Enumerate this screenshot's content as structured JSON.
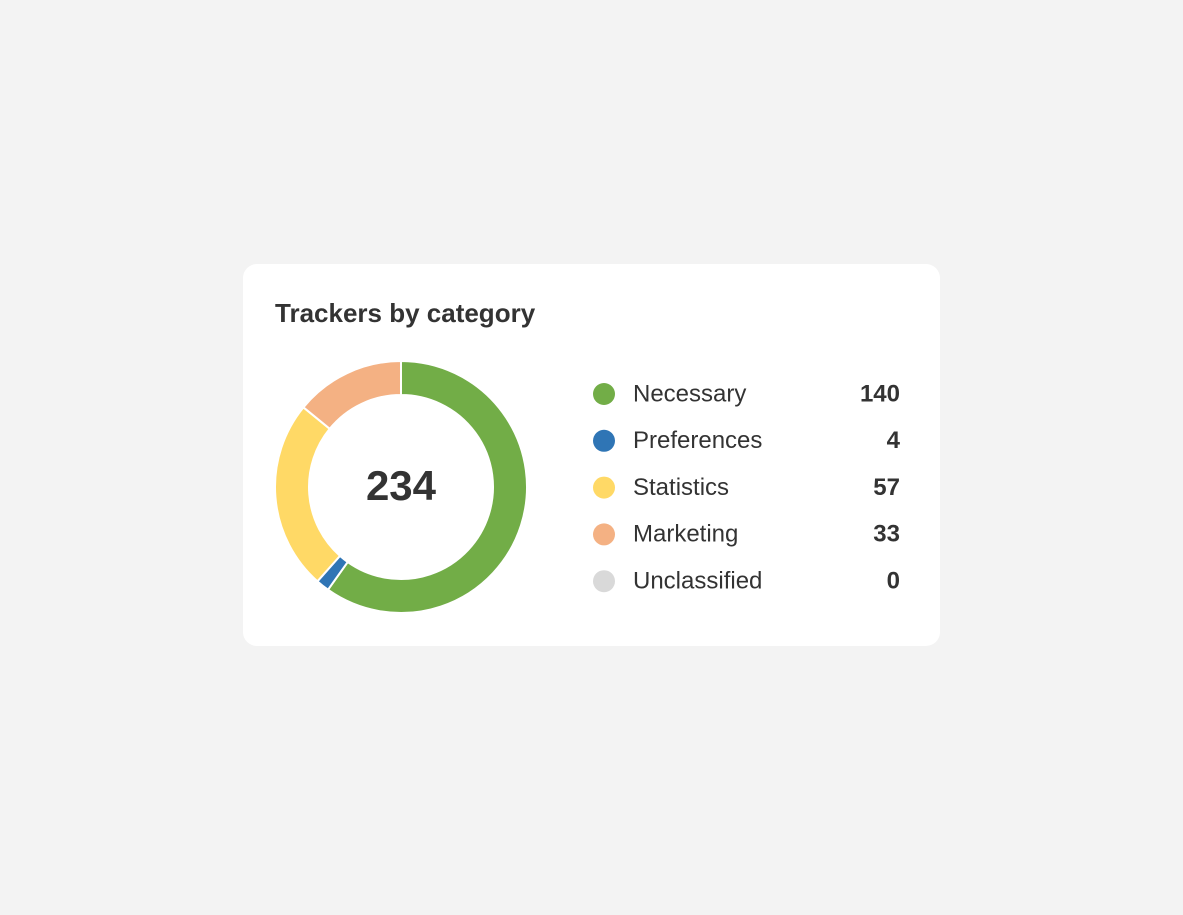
{
  "chart_data": {
    "type": "pie",
    "donut": true,
    "title": "Trackers by category",
    "total": 234,
    "categories": [
      "Necessary",
      "Preferences",
      "Statistics",
      "Marketing",
      "Unclassified"
    ],
    "values": [
      140,
      4,
      57,
      33,
      0
    ],
    "colors": [
      "#72ad47",
      "#2f75b5",
      "#ffd966",
      "#f4b183",
      "#d9d9d9"
    ]
  }
}
